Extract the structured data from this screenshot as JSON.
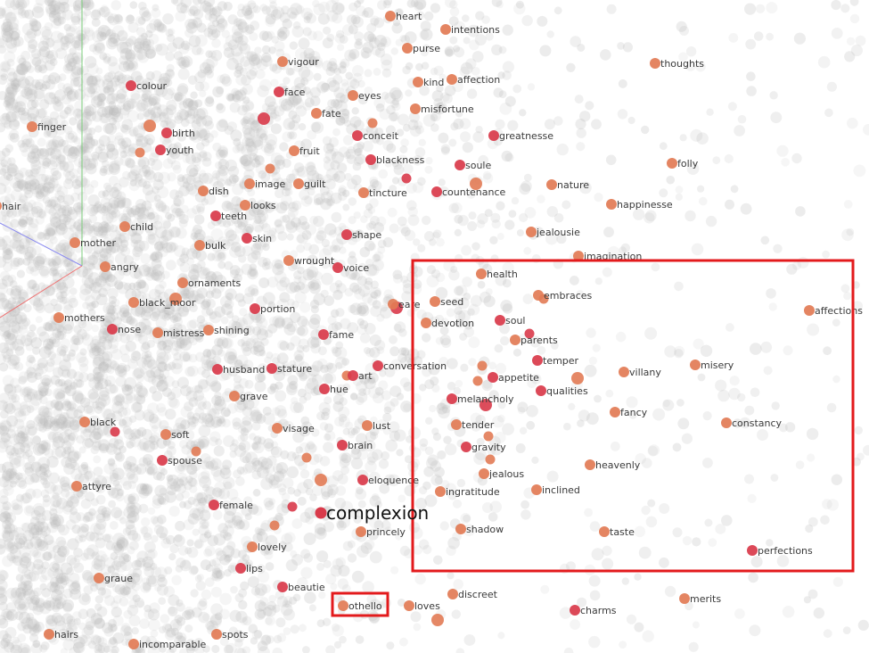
{
  "colors": {
    "background_point": "#b9b9b9",
    "near_point": "#e27b55",
    "close_point": "#d93a4a",
    "selection_box": "#e31a1c",
    "axis_green": "#7ccf7c",
    "axis_blue": "#8c8cf0",
    "axis_red": "#f07070"
  },
  "chart_data": {
    "type": "scatter",
    "title": "",
    "xlabel": "",
    "ylabel": "",
    "grid": false,
    "legend": "none",
    "focus_word": {
      "label": "complexion",
      "x": 360,
      "y": 575
    },
    "points": [
      {
        "label": "heart",
        "x": 438,
        "y": 18,
        "tone": "near"
      },
      {
        "label": "intentions",
        "x": 500,
        "y": 33,
        "tone": "near"
      },
      {
        "label": "purse",
        "x": 457,
        "y": 54,
        "tone": "near"
      },
      {
        "label": "vigour",
        "x": 317,
        "y": 69,
        "tone": "near"
      },
      {
        "label": "thoughts",
        "x": 735,
        "y": 71,
        "tone": "near"
      },
      {
        "label": "kind",
        "x": 469,
        "y": 92,
        "tone": "near"
      },
      {
        "label": "affection",
        "x": 507,
        "y": 89,
        "tone": "near"
      },
      {
        "label": "colour",
        "x": 147,
        "y": 96,
        "tone": "close"
      },
      {
        "label": "face",
        "x": 313,
        "y": 103,
        "tone": "close"
      },
      {
        "label": "eyes",
        "x": 396,
        "y": 107,
        "tone": "near"
      },
      {
        "label": "misfortune",
        "x": 466,
        "y": 122,
        "tone": "near"
      },
      {
        "label": "fate",
        "x": 355,
        "y": 127,
        "tone": "near"
      },
      {
        "label": "finger",
        "x": 36,
        "y": 142,
        "tone": "near"
      },
      {
        "label": "birth",
        "x": 187,
        "y": 149,
        "tone": "close"
      },
      {
        "label": "conceit",
        "x": 401,
        "y": 152,
        "tone": "close"
      },
      {
        "label": "greatnesse",
        "x": 554,
        "y": 152,
        "tone": "close"
      },
      {
        "label": "youth",
        "x": 180,
        "y": 168,
        "tone": "close"
      },
      {
        "label": "fruit",
        "x": 330,
        "y": 169,
        "tone": "near"
      },
      {
        "label": "blackness",
        "x": 416,
        "y": 179,
        "tone": "close"
      },
      {
        "label": "soule",
        "x": 516,
        "y": 185,
        "tone": "close"
      },
      {
        "label": "folly",
        "x": 754,
        "y": 183,
        "tone": "near"
      },
      {
        "label": "image",
        "x": 280,
        "y": 206,
        "tone": "near"
      },
      {
        "label": "guilt",
        "x": 335,
        "y": 206,
        "tone": "near"
      },
      {
        "label": "nature",
        "x": 619,
        "y": 207,
        "tone": "near"
      },
      {
        "label": "dish",
        "x": 228,
        "y": 214,
        "tone": "near"
      },
      {
        "label": "tincture",
        "x": 408,
        "y": 216,
        "tone": "near"
      },
      {
        "label": "countenance",
        "x": 490,
        "y": 215,
        "tone": "close"
      },
      {
        "label": "looks",
        "x": 275,
        "y": 230,
        "tone": "near"
      },
      {
        "label": "happinesse",
        "x": 686,
        "y": 229,
        "tone": "near"
      },
      {
        "label": "hair",
        "x": -4,
        "y": 231,
        "tone": "near"
      },
      {
        "label": "teeth",
        "x": 242,
        "y": 242,
        "tone": "close"
      },
      {
        "label": "child",
        "x": 140,
        "y": 254,
        "tone": "near"
      },
      {
        "label": "jealousie",
        "x": 596,
        "y": 260,
        "tone": "near"
      },
      {
        "label": "skin",
        "x": 277,
        "y": 267,
        "tone": "close"
      },
      {
        "label": "shape",
        "x": 389,
        "y": 263,
        "tone": "close"
      },
      {
        "label": "mother",
        "x": 84,
        "y": 272,
        "tone": "near"
      },
      {
        "label": "bulk",
        "x": 224,
        "y": 275,
        "tone": "near"
      },
      {
        "label": "imagination",
        "x": 649,
        "y": 287,
        "tone": "near"
      },
      {
        "label": "wrought",
        "x": 324,
        "y": 292,
        "tone": "near"
      },
      {
        "label": "voice",
        "x": 379,
        "y": 300,
        "tone": "close"
      },
      {
        "label": "angry",
        "x": 118,
        "y": 299,
        "tone": "near"
      },
      {
        "label": "health",
        "x": 540,
        "y": 307,
        "tone": "near"
      },
      {
        "label": "ornaments",
        "x": 205,
        "y": 317,
        "tone": "near"
      },
      {
        "label": "embraces",
        "x": 604,
        "y": 331,
        "tone": "near"
      },
      {
        "label": "black_moor",
        "x": 150,
        "y": 339,
        "tone": "near"
      },
      {
        "label": "seed",
        "x": 488,
        "y": 338,
        "tone": "near"
      },
      {
        "label": "eare",
        "x": 441,
        "y": 341,
        "tone": "near"
      },
      {
        "label": "portion",
        "x": 286,
        "y": 346,
        "tone": "close"
      },
      {
        "label": "affections",
        "x": 908,
        "y": 348,
        "tone": "near"
      },
      {
        "label": "mothers",
        "x": 66,
        "y": 356,
        "tone": "near"
      },
      {
        "label": "soul",
        "x": 561,
        "y": 359,
        "tone": "close"
      },
      {
        "label": "devotion",
        "x": 478,
        "y": 362,
        "tone": "near"
      },
      {
        "label": "nose",
        "x": 126,
        "y": 369,
        "tone": "close"
      },
      {
        "label": "mistress",
        "x": 177,
        "y": 373,
        "tone": "near"
      },
      {
        "label": "shining",
        "x": 234,
        "y": 370,
        "tone": "near"
      },
      {
        "label": "fame",
        "x": 363,
        "y": 375,
        "tone": "close"
      },
      {
        "label": "parents",
        "x": 578,
        "y": 381,
        "tone": "near"
      },
      {
        "label": "temper",
        "x": 603,
        "y": 404,
        "tone": "close"
      },
      {
        "label": "misery",
        "x": 780,
        "y": 409,
        "tone": "near"
      },
      {
        "label": "husband",
        "x": 244,
        "y": 414,
        "tone": "close"
      },
      {
        "label": "stature",
        "x": 305,
        "y": 413,
        "tone": "close"
      },
      {
        "label": "conversation",
        "x": 424,
        "y": 410,
        "tone": "close"
      },
      {
        "label": "villany",
        "x": 700,
        "y": 417,
        "tone": "near"
      },
      {
        "label": "art",
        "x": 396,
        "y": 421,
        "tone": "close"
      },
      {
        "label": "appetite",
        "x": 553,
        "y": 423,
        "tone": "close"
      },
      {
        "label": "hue",
        "x": 364,
        "y": 436,
        "tone": "close"
      },
      {
        "label": "qualities",
        "x": 607,
        "y": 438,
        "tone": "close"
      },
      {
        "label": "grave",
        "x": 263,
        "y": 444,
        "tone": "near"
      },
      {
        "label": "melancholy",
        "x": 507,
        "y": 447,
        "tone": "close"
      },
      {
        "label": "fancy",
        "x": 690,
        "y": 462,
        "tone": "near"
      },
      {
        "label": "black",
        "x": 95,
        "y": 473,
        "tone": "near"
      },
      {
        "label": "constancy",
        "x": 815,
        "y": 474,
        "tone": "near"
      },
      {
        "label": "lust",
        "x": 412,
        "y": 477,
        "tone": "near"
      },
      {
        "label": "visage",
        "x": 311,
        "y": 480,
        "tone": "near"
      },
      {
        "label": "tender",
        "x": 512,
        "y": 476,
        "tone": "near"
      },
      {
        "label": "soft",
        "x": 186,
        "y": 487,
        "tone": "near"
      },
      {
        "label": "brain",
        "x": 384,
        "y": 499,
        "tone": "close"
      },
      {
        "label": "gravity",
        "x": 523,
        "y": 501,
        "tone": "close"
      },
      {
        "label": "spouse",
        "x": 182,
        "y": 516,
        "tone": "close"
      },
      {
        "label": "heavenly",
        "x": 662,
        "y": 521,
        "tone": "near"
      },
      {
        "label": "jealous",
        "x": 543,
        "y": 531,
        "tone": "near"
      },
      {
        "label": "eloquence",
        "x": 407,
        "y": 538,
        "tone": "close"
      },
      {
        "label": "attyre",
        "x": 86,
        "y": 545,
        "tone": "near"
      },
      {
        "label": "ingratitude",
        "x": 494,
        "y": 551,
        "tone": "near"
      },
      {
        "label": "inclined",
        "x": 602,
        "y": 549,
        "tone": "near"
      },
      {
        "label": "female",
        "x": 240,
        "y": 566,
        "tone": "close"
      },
      {
        "label": "princely",
        "x": 405,
        "y": 596,
        "tone": "near"
      },
      {
        "label": "shadow",
        "x": 517,
        "y": 593,
        "tone": "near"
      },
      {
        "label": "taste",
        "x": 678,
        "y": 596,
        "tone": "near"
      },
      {
        "label": "lovely",
        "x": 283,
        "y": 613,
        "tone": "near"
      },
      {
        "label": "perfections",
        "x": 844,
        "y": 617,
        "tone": "close"
      },
      {
        "label": "lips",
        "x": 270,
        "y": 637,
        "tone": "close"
      },
      {
        "label": "graue",
        "x": 111,
        "y": 648,
        "tone": "near"
      },
      {
        "label": "beautie",
        "x": 317,
        "y": 658,
        "tone": "close"
      },
      {
        "label": "discreet",
        "x": 508,
        "y": 666,
        "tone": "near"
      },
      {
        "label": "merits",
        "x": 768,
        "y": 671,
        "tone": "near"
      },
      {
        "label": "othello",
        "x": 385,
        "y": 679,
        "tone": "near"
      },
      {
        "label": "loves",
        "x": 459,
        "y": 679,
        "tone": "near"
      },
      {
        "label": "charms",
        "x": 645,
        "y": 684,
        "tone": "close"
      },
      {
        "label": "hairs",
        "x": 55,
        "y": 711,
        "tone": "near"
      },
      {
        "label": "spots",
        "x": 243,
        "y": 711,
        "tone": "near"
      },
      {
        "label": "incomparable",
        "x": 150,
        "y": 722,
        "tone": "near"
      }
    ]
  }
}
